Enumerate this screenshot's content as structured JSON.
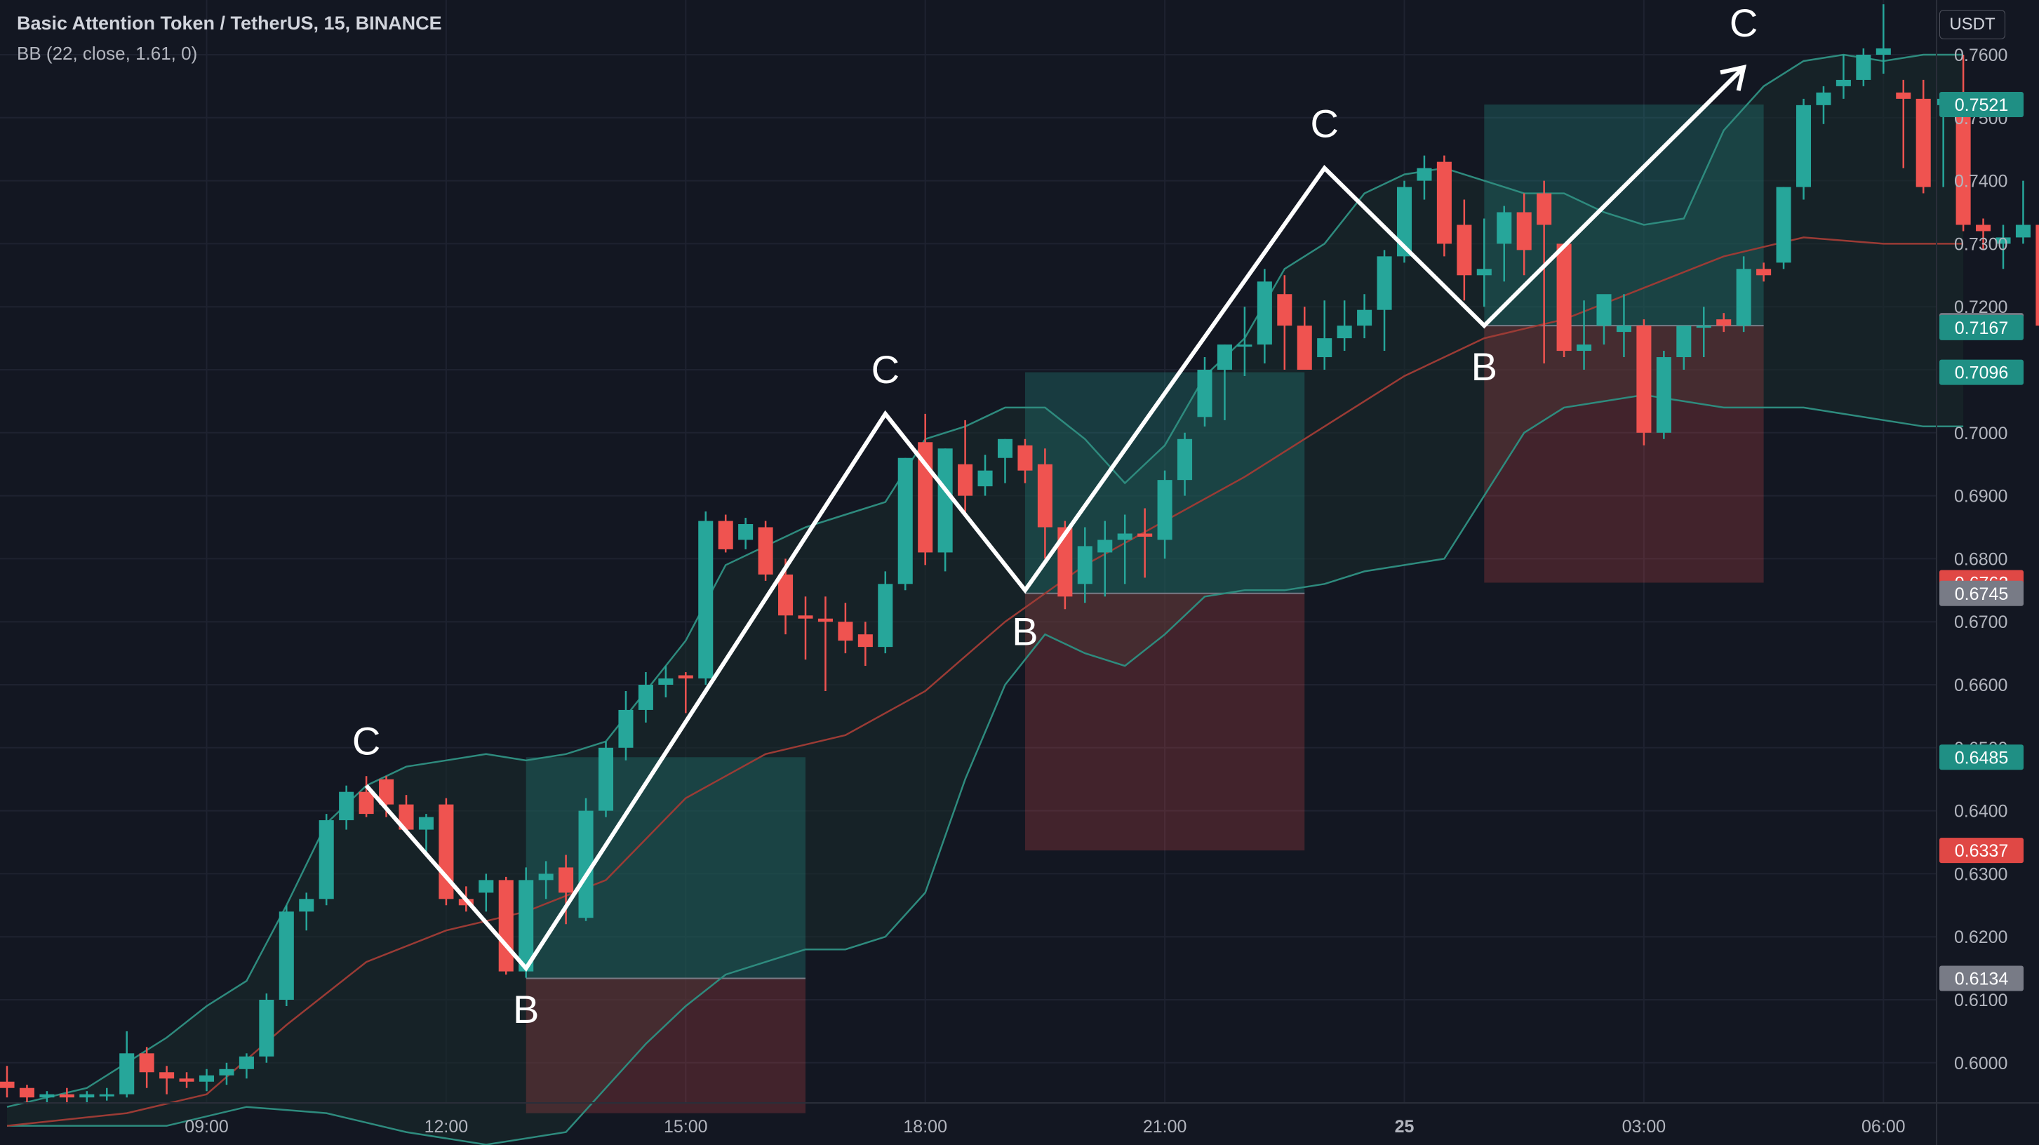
{
  "legend": {
    "title": "Basic Attention Token / TetherUS, 15, BINANCE",
    "indicator": "BB (22, close, 1.61, 0)"
  },
  "currency": "USDT",
  "colors": {
    "background": "#131722",
    "grid": "#1e2230",
    "up": "#26a69a",
    "down": "#ef5350",
    "bb_band": "#2e8b7e",
    "bb_basis": "#9b3b35",
    "bb_fill": "#1a2b2c",
    "target_fill": "rgba(38,166,154,0.25)",
    "stop_fill": "rgba(239,83,80,0.22)",
    "axis_text": "#b2b5be",
    "pattern": "#ffffff"
  },
  "chart_data": {
    "type": "candlestick",
    "y_axis": {
      "range": [
        0.593,
        0.768
      ],
      "ticks": [
        "0.7600",
        "0.7500",
        "0.7400",
        "0.7300",
        "0.7200",
        "0.7100",
        "0.7000",
        "0.6900",
        "0.6800",
        "0.6700",
        "0.6600",
        "0.6500",
        "0.6400",
        "0.6300",
        "0.6200",
        "0.6100",
        "0.6000"
      ]
    },
    "x_axis": {
      "labels": [
        {
          "label": "09:00",
          "t": 10.0
        },
        {
          "label": "12:00",
          "t": 22.0
        },
        {
          "label": "15:00",
          "t": 34.0
        },
        {
          "label": "18:00",
          "t": 46.0
        },
        {
          "label": "21:00",
          "t": 58.0
        },
        {
          "label": "25",
          "t": 70.0
        },
        {
          "label": "03:00",
          "t": 82.0
        },
        {
          "label": "06:00",
          "t": 94.0
        }
      ]
    },
    "candles": [
      [
        0.597,
        0.5995,
        0.5945,
        0.596
      ],
      [
        0.596,
        0.5965,
        0.5935,
        0.5945
      ],
      [
        0.5945,
        0.5955,
        0.5935,
        0.595
      ],
      [
        0.595,
        0.596,
        0.5935,
        0.5945
      ],
      [
        0.5945,
        0.5955,
        0.5935,
        0.595
      ],
      [
        0.595,
        0.596,
        0.594,
        0.595
      ],
      [
        0.595,
        0.605,
        0.5945,
        0.6015
      ],
      [
        0.6015,
        0.6025,
        0.596,
        0.5985
      ],
      [
        0.5985,
        0.5995,
        0.595,
        0.5975
      ],
      [
        0.5975,
        0.5985,
        0.596,
        0.597
      ],
      [
        0.597,
        0.599,
        0.5955,
        0.598
      ],
      [
        0.598,
        0.6,
        0.5965,
        0.599
      ],
      [
        0.599,
        0.6015,
        0.5975,
        0.601
      ],
      [
        0.601,
        0.611,
        0.6,
        0.61
      ],
      [
        0.61,
        0.625,
        0.609,
        0.624
      ],
      [
        0.624,
        0.627,
        0.621,
        0.626
      ],
      [
        0.626,
        0.6395,
        0.625,
        0.6385
      ],
      [
        0.6385,
        0.644,
        0.637,
        0.643
      ],
      [
        0.643,
        0.6455,
        0.639,
        0.6395
      ],
      [
        0.645,
        0.6455,
        0.639,
        0.641
      ],
      [
        0.641,
        0.6425,
        0.6365,
        0.637
      ],
      [
        0.637,
        0.6395,
        0.633,
        0.639
      ],
      [
        0.641,
        0.642,
        0.625,
        0.626
      ],
      [
        0.626,
        0.628,
        0.624,
        0.625
      ],
      [
        0.627,
        0.63,
        0.624,
        0.629
      ],
      [
        0.629,
        0.6295,
        0.614,
        0.6145
      ],
      [
        0.6145,
        0.631,
        0.6135,
        0.629
      ],
      [
        0.629,
        0.632,
        0.626,
        0.63
      ],
      [
        0.631,
        0.633,
        0.622,
        0.627
      ],
      [
        0.623,
        0.642,
        0.6225,
        0.64
      ],
      [
        0.64,
        0.651,
        0.639,
        0.65
      ],
      [
        0.65,
        0.659,
        0.648,
        0.656
      ],
      [
        0.656,
        0.662,
        0.654,
        0.66
      ],
      [
        0.66,
        0.663,
        0.658,
        0.661
      ],
      [
        0.6615,
        0.662,
        0.6555,
        0.661
      ],
      [
        0.661,
        0.6875,
        0.66,
        0.686
      ],
      [
        0.686,
        0.687,
        0.681,
        0.6815
      ],
      [
        0.683,
        0.6865,
        0.6815,
        0.6855
      ],
      [
        0.685,
        0.686,
        0.6765,
        0.6775
      ],
      [
        0.6775,
        0.68,
        0.668,
        0.671
      ],
      [
        0.671,
        0.674,
        0.664,
        0.6705
      ],
      [
        0.6705,
        0.674,
        0.659,
        0.67
      ],
      [
        0.67,
        0.673,
        0.665,
        0.667
      ],
      [
        0.668,
        0.67,
        0.663,
        0.666
      ],
      [
        0.666,
        0.678,
        0.665,
        0.676
      ],
      [
        0.676,
        0.696,
        0.675,
        0.696
      ],
      [
        0.6985,
        0.703,
        0.679,
        0.681
      ],
      [
        0.681,
        0.6975,
        0.678,
        0.6975
      ],
      [
        0.695,
        0.702,
        0.687,
        0.69
      ],
      [
        0.6915,
        0.6965,
        0.69,
        0.694
      ],
      [
        0.696,
        0.699,
        0.692,
        0.699
      ],
      [
        0.698,
        0.699,
        0.692,
        0.694
      ],
      [
        0.695,
        0.6975,
        0.68,
        0.685
      ],
      [
        0.685,
        0.686,
        0.672,
        0.674
      ],
      [
        0.676,
        0.685,
        0.673,
        0.682
      ],
      [
        0.681,
        0.686,
        0.674,
        0.683
      ],
      [
        0.683,
        0.687,
        0.676,
        0.684
      ],
      [
        0.684,
        0.688,
        0.677,
        0.6835
      ],
      [
        0.683,
        0.694,
        0.68,
        0.6925
      ],
      [
        0.6925,
        0.7,
        0.69,
        0.699
      ],
      [
        0.7025,
        0.712,
        0.701,
        0.71
      ],
      [
        0.71,
        0.714,
        0.702,
        0.714
      ],
      [
        0.714,
        0.72,
        0.709,
        0.714
      ],
      [
        0.714,
        0.726,
        0.711,
        0.724
      ],
      [
        0.722,
        0.725,
        0.71,
        0.717
      ],
      [
        0.717,
        0.72,
        0.71,
        0.71
      ],
      [
        0.712,
        0.721,
        0.71,
        0.715
      ],
      [
        0.715,
        0.721,
        0.713,
        0.717
      ],
      [
        0.717,
        0.722,
        0.715,
        0.7195
      ],
      [
        0.7195,
        0.729,
        0.713,
        0.728
      ],
      [
        0.728,
        0.74,
        0.727,
        0.739
      ],
      [
        0.74,
        0.744,
        0.737,
        0.742
      ],
      [
        0.743,
        0.744,
        0.728,
        0.73
      ],
      [
        0.733,
        0.737,
        0.721,
        0.725
      ],
      [
        0.725,
        0.734,
        0.72,
        0.726
      ],
      [
        0.73,
        0.736,
        0.724,
        0.735
      ],
      [
        0.735,
        0.738,
        0.725,
        0.729
      ],
      [
        0.738,
        0.74,
        0.711,
        0.733
      ],
      [
        0.73,
        0.73,
        0.712,
        0.713
      ],
      [
        0.713,
        0.721,
        0.71,
        0.714
      ],
      [
        0.717,
        0.721,
        0.714,
        0.722
      ],
      [
        0.716,
        0.722,
        0.712,
        0.717
      ],
      [
        0.717,
        0.718,
        0.698,
        0.7
      ],
      [
        0.7,
        0.713,
        0.699,
        0.712
      ],
      [
        0.712,
        0.717,
        0.71,
        0.717
      ],
      [
        0.717,
        0.72,
        0.712,
        0.717
      ],
      [
        0.718,
        0.719,
        0.716,
        0.717
      ],
      [
        0.717,
        0.728,
        0.716,
        0.726
      ],
      [
        0.726,
        0.727,
        0.724,
        0.725
      ],
      [
        0.727,
        0.739,
        0.726,
        0.739
      ],
      [
        0.739,
        0.753,
        0.737,
        0.752
      ],
      [
        0.752,
        0.755,
        0.749,
        0.754
      ],
      [
        0.755,
        0.76,
        0.753,
        0.756
      ],
      [
        0.756,
        0.761,
        0.755,
        0.76
      ],
      [
        0.76,
        0.768,
        0.757,
        0.761
      ],
      [
        0.754,
        0.756,
        0.742,
        0.753
      ],
      [
        0.753,
        0.756,
        0.738,
        0.739
      ],
      [
        0.752,
        0.754,
        0.739,
        0.753
      ],
      [
        0.752,
        0.76,
        0.732,
        0.733
      ],
      [
        0.733,
        0.734,
        0.729,
        0.732
      ],
      [
        0.73,
        0.733,
        0.726,
        0.731
      ],
      [
        0.731,
        0.74,
        0.73,
        0.733
      ],
      [
        0.733,
        0.737,
        0.716,
        0.717
      ],
      [
        0.717,
        0.72,
        0.7,
        0.702
      ],
      [
        0.702,
        0.704,
        0.698,
        0.699
      ],
      [
        0.701,
        0.716,
        0.695,
        0.702
      ],
      [
        0.703,
        0.718,
        0.7,
        0.717
      ]
    ],
    "bollinger": {
      "upper": [
        [
          0,
          0.593
        ],
        [
          4,
          0.596
        ],
        [
          6,
          0.6
        ],
        [
          8,
          0.604
        ],
        [
          10,
          0.609
        ],
        [
          12,
          0.613
        ],
        [
          14,
          0.625
        ],
        [
          16,
          0.638
        ],
        [
          18,
          0.644
        ],
        [
          20,
          0.647
        ],
        [
          22,
          0.648
        ],
        [
          24,
          0.649
        ],
        [
          26,
          0.648
        ],
        [
          28,
          0.649
        ],
        [
          30,
          0.651
        ],
        [
          32,
          0.659
        ],
        [
          34,
          0.667
        ],
        [
          36,
          0.679
        ],
        [
          38,
          0.682
        ],
        [
          40,
          0.685
        ],
        [
          42,
          0.687
        ],
        [
          44,
          0.689
        ],
        [
          46,
          0.699
        ],
        [
          48,
          0.701
        ],
        [
          50,
          0.704
        ],
        [
          52,
          0.704
        ],
        [
          54,
          0.699
        ],
        [
          56,
          0.692
        ],
        [
          58,
          0.698
        ],
        [
          60,
          0.709
        ],
        [
          62,
          0.715
        ],
        [
          64,
          0.726
        ],
        [
          66,
          0.73
        ],
        [
          68,
          0.738
        ],
        [
          70,
          0.741
        ],
        [
          72,
          0.742
        ],
        [
          74,
          0.74
        ],
        [
          76,
          0.738
        ],
        [
          78,
          0.738
        ],
        [
          80,
          0.735
        ],
        [
          82,
          0.733
        ],
        [
          84,
          0.734
        ],
        [
          86,
          0.748
        ],
        [
          88,
          0.755
        ],
        [
          90,
          0.759
        ],
        [
          92,
          0.76
        ],
        [
          94,
          0.759
        ],
        [
          96,
          0.76
        ],
        [
          98,
          0.76
        ]
      ],
      "basis": [
        [
          0,
          0.59
        ],
        [
          6,
          0.592
        ],
        [
          10,
          0.595
        ],
        [
          14,
          0.606
        ],
        [
          18,
          0.616
        ],
        [
          22,
          0.621
        ],
        [
          26,
          0.624
        ],
        [
          30,
          0.629
        ],
        [
          34,
          0.642
        ],
        [
          38,
          0.649
        ],
        [
          42,
          0.652
        ],
        [
          46,
          0.659
        ],
        [
          50,
          0.67
        ],
        [
          54,
          0.679
        ],
        [
          58,
          0.686
        ],
        [
          62,
          0.693
        ],
        [
          66,
          0.701
        ],
        [
          70,
          0.709
        ],
        [
          74,
          0.715
        ],
        [
          78,
          0.718
        ],
        [
          82,
          0.723
        ],
        [
          86,
          0.728
        ],
        [
          90,
          0.731
        ],
        [
          94,
          0.73
        ],
        [
          98,
          0.73
        ]
      ],
      "lower": [
        [
          0,
          0.59
        ],
        [
          8,
          0.59
        ],
        [
          12,
          0.593
        ],
        [
          16,
          0.592
        ],
        [
          20,
          0.589
        ],
        [
          24,
          0.587
        ],
        [
          28,
          0.589
        ],
        [
          30,
          0.596
        ],
        [
          32,
          0.603
        ],
        [
          34,
          0.609
        ],
        [
          36,
          0.614
        ],
        [
          38,
          0.616
        ],
        [
          40,
          0.618
        ],
        [
          42,
          0.618
        ],
        [
          44,
          0.62
        ],
        [
          46,
          0.627
        ],
        [
          48,
          0.645
        ],
        [
          50,
          0.66
        ],
        [
          52,
          0.668
        ],
        [
          54,
          0.665
        ],
        [
          56,
          0.663
        ],
        [
          58,
          0.668
        ],
        [
          60,
          0.674
        ],
        [
          62,
          0.675
        ],
        [
          64,
          0.675
        ],
        [
          66,
          0.676
        ],
        [
          68,
          0.678
        ],
        [
          70,
          0.679
        ],
        [
          72,
          0.68
        ],
        [
          74,
          0.69
        ],
        [
          76,
          0.7
        ],
        [
          78,
          0.704
        ],
        [
          80,
          0.705
        ],
        [
          82,
          0.706
        ],
        [
          84,
          0.705
        ],
        [
          86,
          0.704
        ],
        [
          88,
          0.704
        ],
        [
          90,
          0.704
        ],
        [
          92,
          0.703
        ],
        [
          94,
          0.702
        ],
        [
          96,
          0.701
        ],
        [
          98,
          0.701
        ]
      ]
    },
    "positions": [
      {
        "t0": 26.0,
        "t1": 40.0,
        "entry": 0.6134,
        "target": 0.6485,
        "stop": 0.592
      },
      {
        "t0": 51.0,
        "t1": 65.0,
        "entry": 0.6745,
        "target": 0.7096,
        "stop": 0.6337
      },
      {
        "t0": 74.0,
        "t1": 88.0,
        "entry": 0.717,
        "target": 0.7521,
        "stop": 0.6762
      }
    ],
    "pattern_points": [
      {
        "t": 18.0,
        "p": 0.644,
        "label": "C",
        "pos": "above"
      },
      {
        "t": 26.0,
        "p": 0.615,
        "label": "B",
        "pos": "below"
      },
      {
        "t": 44.0,
        "p": 0.703,
        "label": "C",
        "pos": "above"
      },
      {
        "t": 51.0,
        "p": 0.675,
        "label": "B",
        "pos": "below"
      },
      {
        "t": 66.0,
        "p": 0.742,
        "label": "C",
        "pos": "above"
      },
      {
        "t": 74.0,
        "p": 0.717,
        "label": "B",
        "pos": "below"
      },
      {
        "t": 87.0,
        "p": 0.758,
        "label": "C",
        "pos": "above",
        "arrow": true
      }
    ],
    "price_labels": [
      {
        "value": 0.7521,
        "text": "0.7521",
        "color": "#1f8f84"
      },
      {
        "value": 0.717,
        "text": "0.7170",
        "color": "#787b86"
      },
      {
        "value": 0.7167,
        "text": "0.7167",
        "color": "#1f8f84"
      },
      {
        "value": 0.7096,
        "text": "0.7096",
        "color": "#1f8f84"
      },
      {
        "value": 0.6762,
        "text": "0.6762",
        "color": "#e04845"
      },
      {
        "value": 0.6745,
        "text": "0.6745",
        "color": "#787b86"
      },
      {
        "value": 0.6485,
        "text": "0.6485",
        "color": "#1f8f84"
      },
      {
        "value": 0.6337,
        "text": "0.6337",
        "color": "#e04845"
      },
      {
        "value": 0.6134,
        "text": "0.6134",
        "color": "#787b86"
      }
    ]
  }
}
